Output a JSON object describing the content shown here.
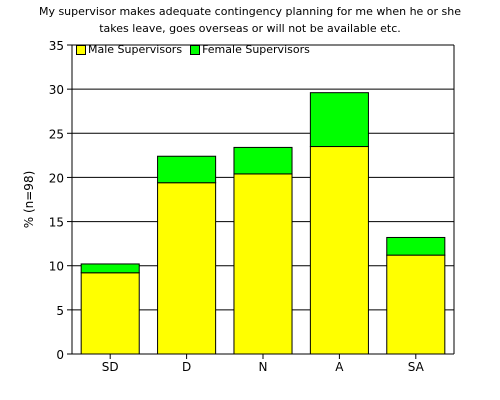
{
  "chart_data": {
    "type": "bar",
    "stacked": true,
    "title_lines": [
      "My supervisor makes adequate contingency planning for me when he or she",
      "takes leave, goes overseas or will not be available etc."
    ],
    "xlabel": "",
    "ylabel": "% (n=98)",
    "ylim": [
      0,
      35
    ],
    "yticks": [
      0,
      5,
      10,
      15,
      20,
      25,
      30,
      35
    ],
    "grid": true,
    "legend_position": "top-left",
    "categories": [
      "SD",
      "D",
      "N",
      "A",
      "SA"
    ],
    "series": [
      {
        "name": "Male Supervisors",
        "color": "#ffff00",
        "values": [
          9.2,
          19.4,
          20.4,
          23.5,
          11.2
        ]
      },
      {
        "name": "Female Supervisors",
        "color": "#00ff00",
        "values": [
          1.0,
          3.0,
          3.0,
          6.1,
          2.0
        ]
      }
    ]
  }
}
